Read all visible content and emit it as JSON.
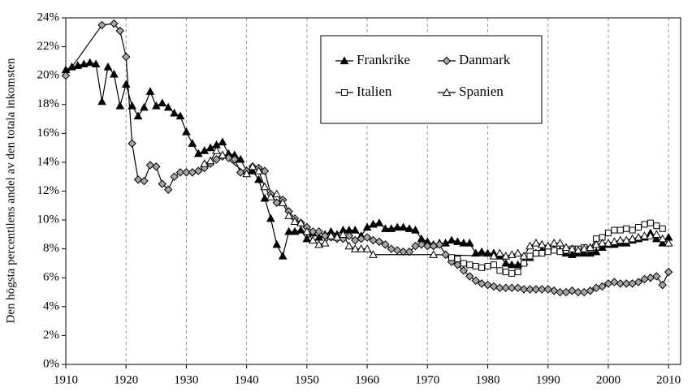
{
  "chart_data": {
    "type": "line",
    "y_label": "Den högsta percentilens andel av den totala inkomsten",
    "xlim": [
      1910,
      2012
    ],
    "xticks": [
      1910,
      1920,
      1930,
      1940,
      1950,
      1960,
      1970,
      1980,
      1990,
      2000,
      2010
    ],
    "ylim": [
      0,
      24
    ],
    "yticks": [
      {
        "value": 0,
        "label": "0%"
      },
      {
        "value": 2,
        "label": "2%"
      },
      {
        "value": 4,
        "label": "4%"
      },
      {
        "value": 6,
        "label": "6%"
      },
      {
        "value": 8,
        "label": "8%"
      },
      {
        "value": 10,
        "label": "10%"
      },
      {
        "value": 12,
        "label": "12%"
      },
      {
        "value": 14,
        "label": "14%"
      },
      {
        "value": 16,
        "label": "16%"
      },
      {
        "value": 18,
        "label": "18%"
      },
      {
        "value": 20,
        "label": "20%"
      },
      {
        "value": 22,
        "label": "22%"
      },
      {
        "value": 24,
        "label": "24%"
      }
    ],
    "grid": "x",
    "legend": "top-center",
    "series": [
      {
        "name": "Frankrike",
        "color": "#000000",
        "marker": "triangle",
        "marker_fill": "#000000",
        "x": [
          1910,
          1911,
          1912,
          1913,
          1914,
          1915,
          1916,
          1917,
          1918,
          1919,
          1920,
          1921,
          1922,
          1923,
          1924,
          1925,
          1926,
          1927,
          1928,
          1929,
          1930,
          1931,
          1932,
          1933,
          1934,
          1935,
          1936,
          1937,
          1938,
          1939,
          1940,
          1941,
          1942,
          1943,
          1944,
          1945,
          1946,
          1947,
          1948,
          1949,
          1950,
          1951,
          1952,
          1953,
          1954,
          1955,
          1956,
          1957,
          1958,
          1959,
          1960,
          1961,
          1962,
          1963,
          1964,
          1965,
          1966,
          1967,
          1968,
          1969,
          1970,
          1971,
          1972,
          1973,
          1974,
          1975,
          1976,
          1977,
          1978,
          1979,
          1980,
          1981,
          1982,
          1983,
          1984,
          1985,
          1986,
          1987,
          1988,
          1989,
          1990,
          1991,
          1992,
          1993,
          1994,
          1995,
          1996,
          1997,
          1998,
          1999,
          2000,
          2001,
          2002,
          2003,
          2004,
          2005,
          2006,
          2007,
          2008,
          2009,
          2010
        ],
        "values": [
          20.4,
          20.6,
          20.7,
          20.8,
          20.9,
          20.8,
          18.2,
          20.6,
          20.1,
          17.9,
          19.4,
          17.9,
          17.2,
          17.8,
          18.9,
          17.9,
          18.1,
          17.8,
          17.4,
          17.2,
          16.1,
          15.3,
          14.6,
          14.8,
          15.0,
          15.2,
          15.4,
          14.6,
          14.5,
          14.2,
          13.4,
          13.4,
          12.8,
          11.5,
          10.1,
          8.3,
          7.5,
          9.2,
          9.2,
          9.3,
          8.7,
          9.1,
          8.8,
          9.0,
          9.2,
          9.0,
          9.3,
          9.3,
          9.3,
          8.9,
          9.5,
          9.7,
          9.8,
          9.4,
          9.4,
          9.5,
          9.5,
          9.4,
          9.3,
          8.7,
          8.5,
          8.3,
          8.4,
          8.4,
          8.6,
          8.5,
          8.4,
          8.4,
          7.7,
          7.8,
          7.7,
          7.7,
          7.5,
          7.0,
          6.9,
          6.9,
          7.1,
          7.4,
          7.7,
          7.9,
          8.1,
          8.0,
          7.9,
          7.7,
          7.6,
          7.7,
          7.7,
          7.7,
          7.8,
          8.1,
          8.3,
          8.3,
          8.4,
          8.4,
          8.6,
          8.7,
          8.8,
          9.1,
          8.7,
          8.4,
          8.8
        ]
      },
      {
        "name": "Danmark",
        "color": "#000000",
        "marker": "diamond",
        "marker_fill": "#a6a6a6",
        "x": [
          1910,
          1916,
          1918,
          1919,
          1920,
          1921,
          1922,
          1923,
          1924,
          1925,
          1926,
          1927,
          1928,
          1929,
          1930,
          1931,
          1932,
          1933,
          1934,
          1935,
          1936,
          1937,
          1938,
          1939,
          1940,
          1941,
          1942,
          1943,
          1944,
          1945,
          1946,
          1947,
          1948,
          1949,
          1950,
          1951,
          1952,
          1953,
          1954,
          1955,
          1956,
          1957,
          1958,
          1959,
          1960,
          1961,
          1962,
          1963,
          1964,
          1965,
          1966,
          1967,
          1968,
          1969,
          1970,
          1971,
          1972,
          1973,
          1974,
          1975,
          1976,
          1977,
          1978,
          1979,
          1980,
          1981,
          1982,
          1983,
          1984,
          1985,
          1986,
          1987,
          1988,
          1989,
          1990,
          1991,
          1992,
          1993,
          1994,
          1995,
          1996,
          1997,
          1998,
          1999,
          2000,
          2001,
          2002,
          2003,
          2004,
          2005,
          2006,
          2007,
          2008,
          2009,
          2010
        ],
        "values": [
          20.0,
          23.5,
          23.6,
          23.1,
          21.3,
          15.3,
          12.8,
          12.7,
          13.8,
          13.7,
          12.5,
          12.1,
          13.0,
          13.3,
          13.3,
          13.3,
          13.4,
          13.6,
          13.9,
          14.2,
          14.4,
          14.3,
          14.2,
          13.3,
          13.4,
          13.7,
          13.6,
          13.4,
          11.8,
          11.2,
          11.4,
          10.6,
          10.1,
          9.8,
          9.5,
          9.2,
          9.2,
          8.9,
          8.8,
          8.7,
          8.7,
          8.9,
          8.6,
          8.7,
          8.8,
          8.6,
          8.5,
          8.3,
          8.0,
          7.9,
          7.8,
          7.8,
          8.2,
          8.3,
          8.2,
          8.2,
          8.3,
          7.6,
          7.1,
          6.9,
          6.5,
          6.1,
          5.8,
          5.6,
          5.5,
          5.4,
          5.3,
          5.3,
          5.3,
          5.3,
          5.2,
          5.2,
          5.2,
          5.2,
          5.2,
          5.1,
          5.0,
          5.0,
          5.1,
          5.0,
          5.0,
          5.1,
          5.3,
          5.4,
          5.6,
          5.7,
          5.6,
          5.6,
          5.6,
          5.7,
          5.9,
          6.0,
          6.1,
          5.5,
          6.4
        ]
      },
      {
        "name": "Italien",
        "color": "#000000",
        "marker": "square",
        "marker_fill": "#ffffff",
        "x": [
          1974,
          1975,
          1976,
          1977,
          1978,
          1979,
          1980,
          1981,
          1982,
          1983,
          1984,
          1985,
          1986,
          1987,
          1988,
          1989,
          1990,
          1991,
          1992,
          1993,
          1994,
          1995,
          1996,
          1997,
          1998,
          1999,
          2000,
          2001,
          2002,
          2003,
          2004,
          2005,
          2006,
          2007,
          2008,
          2009
        ],
        "values": [
          7.4,
          7.3,
          7.0,
          6.9,
          6.8,
          6.7,
          6.8,
          6.9,
          6.5,
          6.4,
          6.3,
          6.4,
          7.0,
          7.5,
          7.7,
          7.7,
          7.8,
          7.9,
          7.8,
          7.9,
          8.0,
          8.0,
          8.1,
          8.0,
          8.7,
          8.8,
          9.1,
          9.3,
          9.3,
          9.4,
          9.3,
          9.5,
          9.7,
          9.8,
          9.6,
          9.4
        ]
      },
      {
        "name": "Spanien",
        "color": "#000000",
        "marker": "triangle",
        "marker_fill": "#ffffff",
        "x": [
          1933,
          1934,
          1935,
          1936,
          1940,
          1941,
          1942,
          1943,
          1944,
          1945,
          1946,
          1947,
          1948,
          1949,
          1950,
          1951,
          1952,
          1953,
          1954,
          1955,
          1956,
          1957,
          1958,
          1959,
          1960,
          1961,
          1971,
          1981,
          1982,
          1983,
          1984,
          1985,
          1986,
          1987,
          1988,
          1989,
          1990,
          1991,
          1992,
          1993,
          1994,
          1995,
          1996,
          1997,
          1998,
          1999,
          2000,
          2001,
          2002,
          2003,
          2004,
          2005,
          2006,
          2007,
          2008,
          2009,
          2010
        ],
        "values": [
          13.9,
          14.1,
          14.8,
          14.5,
          13.2,
          13.7,
          13.4,
          12.3,
          11.6,
          11.8,
          11.2,
          10.3,
          9.9,
          9.8,
          9.2,
          8.6,
          8.3,
          8.4,
          8.9,
          8.8,
          9.0,
          8.2,
          8.0,
          8.0,
          8.0,
          7.6,
          7.6,
          7.5,
          7.7,
          7.5,
          7.6,
          7.7,
          7.5,
          8.2,
          8.4,
          8.3,
          8.2,
          8.4,
          8.4,
          8.1,
          8.0,
          7.9,
          8.0,
          8.1,
          8.3,
          8.4,
          8.4,
          8.5,
          8.6,
          8.6,
          8.7,
          8.8,
          8.9,
          8.9,
          9.0,
          8.7,
          8.4
        ]
      }
    ]
  }
}
